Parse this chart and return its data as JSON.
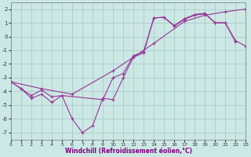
{
  "bg_color": "#cce8e4",
  "grid_color": "#aacccc",
  "line_color": "#993399",
  "xlabel": "Windchill (Refroidissement éolien,°C)",
  "xlim": [
    0,
    23
  ],
  "ylim": [
    -7.5,
    2.5
  ],
  "yticks": [
    -7,
    -6,
    -5,
    -4,
    -3,
    -2,
    -1,
    0,
    1,
    2
  ],
  "xticks": [
    0,
    1,
    2,
    3,
    4,
    5,
    6,
    7,
    8,
    9,
    10,
    11,
    12,
    13,
    14,
    15,
    16,
    17,
    18,
    19,
    20,
    21,
    22,
    23
  ],
  "series": [
    {
      "x": [
        0,
        1,
        2,
        3,
        4,
        5,
        6,
        7,
        8,
        9,
        10,
        11,
        12,
        13,
        14,
        15,
        16,
        17,
        18,
        19,
        20,
        21,
        22
      ],
      "y": [
        -3.3,
        -3.8,
        -4.5,
        -4.2,
        -4.8,
        -4.3,
        -6.0,
        -7.0,
        -6.5,
        -4.5,
        -4.6,
        -3.0,
        -1.5,
        -1.2,
        1.35,
        1.4,
        0.8,
        1.3,
        1.6,
        1.7,
        1.0,
        1.0,
        -0.4
      ]
    },
    {
      "x": [
        0,
        1,
        2,
        3,
        4,
        5,
        9,
        10,
        11,
        12,
        13,
        14,
        15,
        16,
        17,
        18,
        19,
        20,
        21,
        22,
        23
      ],
      "y": [
        -3.3,
        -3.8,
        -4.3,
        -3.9,
        -4.4,
        -4.3,
        -4.6,
        -3.0,
        -2.7,
        -1.4,
        -1.1,
        1.35,
        1.4,
        0.75,
        1.25,
        1.55,
        1.65,
        1.0,
        1.0,
        -0.3,
        -0.7
      ]
    },
    {
      "x": [
        0,
        3,
        6,
        10,
        14,
        17,
        19,
        21,
        23
      ],
      "y": [
        -3.3,
        -3.8,
        -4.2,
        -2.5,
        -0.5,
        1.1,
        1.55,
        1.8,
        2.0
      ]
    }
  ]
}
